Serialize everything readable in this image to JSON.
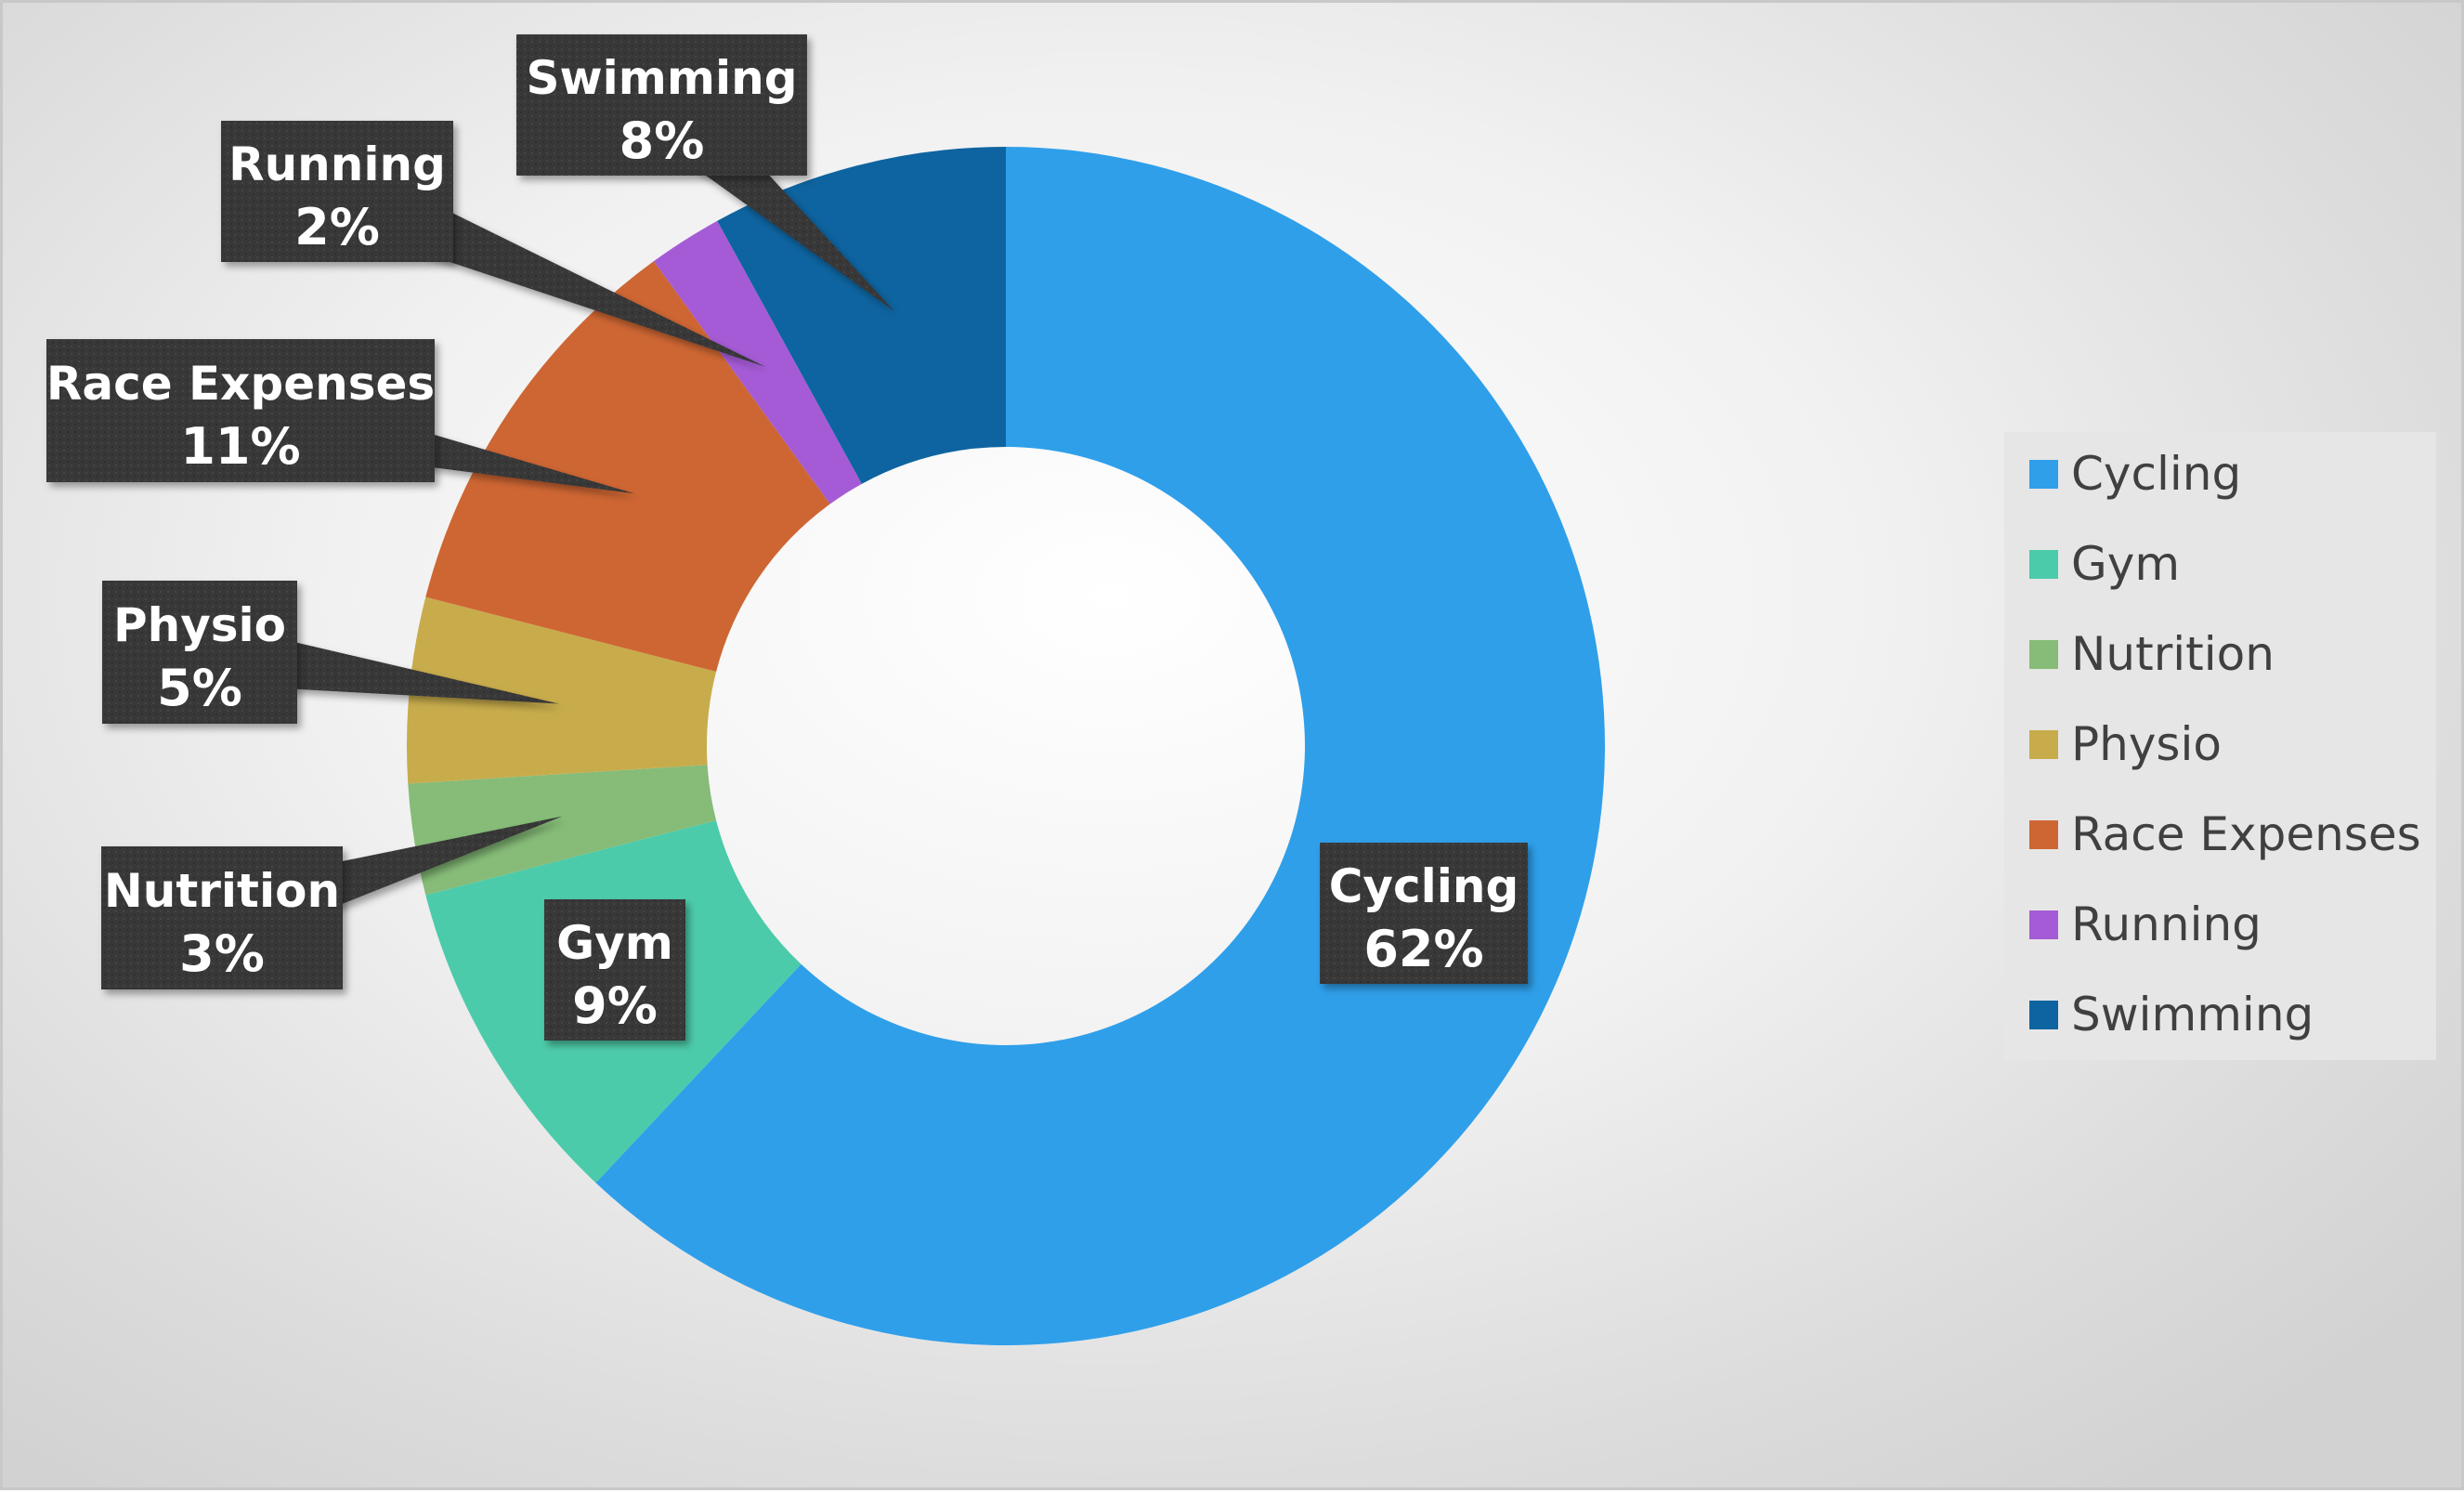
{
  "chart_data": {
    "type": "pie",
    "subtype": "doughnut",
    "title": "",
    "categories": [
      "Cycling",
      "Gym",
      "Nutrition",
      "Physio",
      "Race Expenses",
      "Running",
      "Swimming"
    ],
    "values": [
      62,
      9,
      3,
      5,
      11,
      2,
      8
    ],
    "value_labels": [
      "62%",
      "9%",
      "3%",
      "5%",
      "11%",
      "2%",
      "8%"
    ],
    "colors": [
      "#2F9FEA",
      "#4CCBAA",
      "#86BC78",
      "#C8AC4C",
      "#CE6633",
      "#A55BD6",
      "#0E64A0"
    ],
    "label_box_color": "#3a3a3a",
    "legend": {
      "position": "right",
      "items": [
        "Cycling",
        "Gym",
        "Nutrition",
        "Physio",
        "Race Expenses",
        "Running",
        "Swimming"
      ]
    }
  }
}
